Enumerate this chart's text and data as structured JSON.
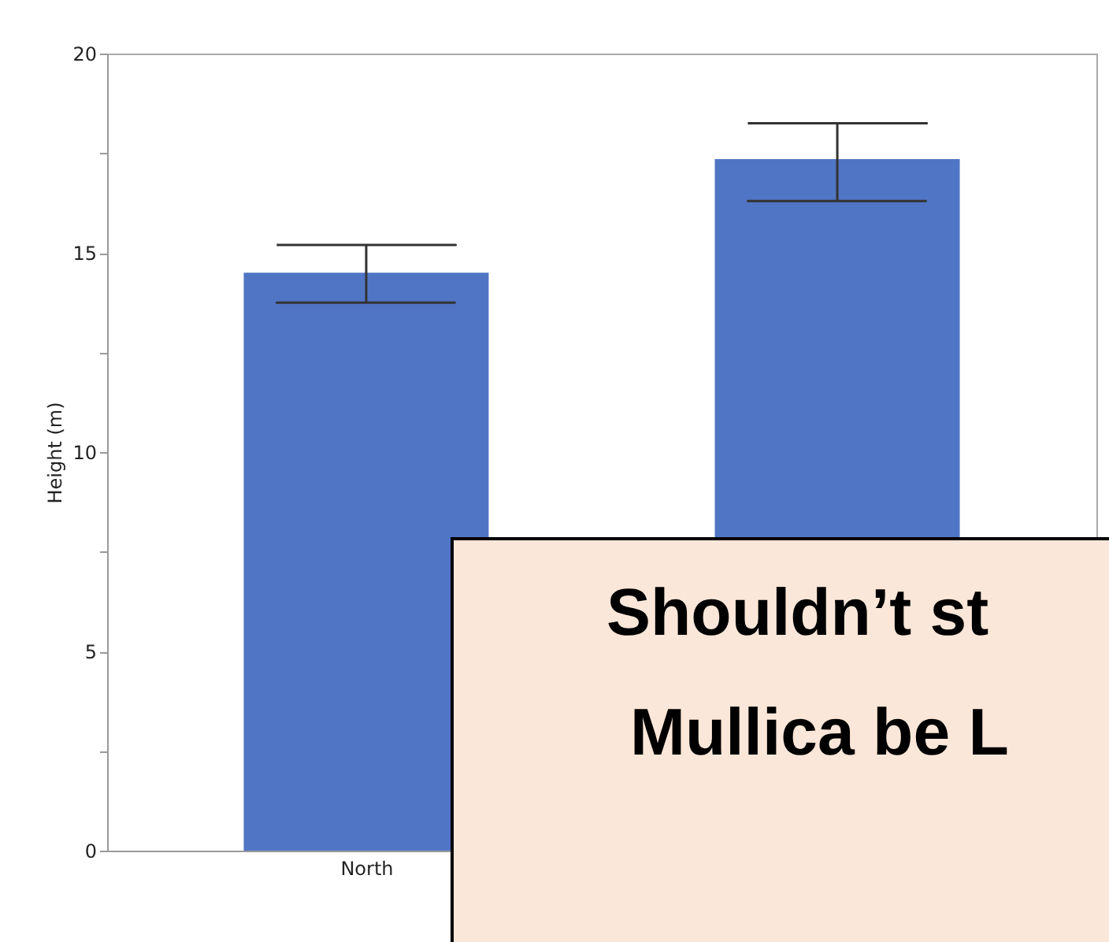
{
  "chart_data": {
    "type": "bar",
    "ylabel": "Height (m)",
    "categories": [
      "North",
      null
    ],
    "values": [
      14.5,
      17.35
    ],
    "errors": [
      [
        13.75,
        15.2
      ],
      [
        16.3,
        18.25
      ]
    ],
    "color": "#5175c5",
    "ylim": [
      0,
      20
    ],
    "yticks": [
      0,
      {
        "value": 2.5,
        "label": null
      },
      5,
      {
        "value": 7.5,
        "label": null
      },
      10,
      {
        "value": 12.5,
        "label": null
      },
      15,
      {
        "value": 17.5,
        "label": null
      },
      20
    ],
    "grid": false,
    "annotations": [
      "Shouldn’t st",
      "Mullica be L"
    ]
  }
}
